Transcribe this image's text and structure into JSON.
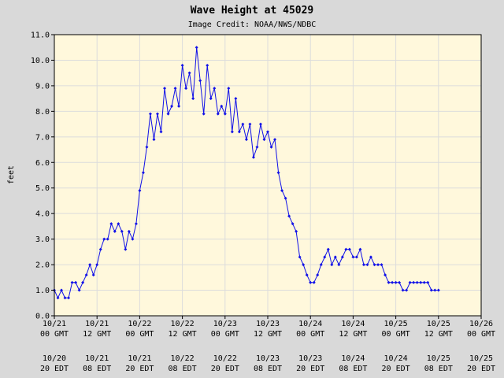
{
  "colors": {
    "page_background": "#d9d9d9",
    "plot_background": "#fff8dc",
    "grid": "#dcdcdc",
    "series": "#1010e8",
    "axis": "#000000"
  },
  "chart_data": {
    "type": "line",
    "title": "Wave Height at 45029",
    "subtitle": "Image Credit: NOAA/NWS/NDBC",
    "xlabel": "",
    "ylabel": "feet",
    "ylim": [
      0,
      11
    ],
    "yticks": [
      "0.0",
      "1.0",
      "2.0",
      "3.0",
      "4.0",
      "5.0",
      "6.0",
      "7.0",
      "8.0",
      "9.0",
      "10.0",
      "11.0"
    ],
    "x_range_hours": [
      0,
      120
    ],
    "grid": true,
    "legend": "none",
    "xticks_gmt": [
      {
        "line1": "10/21",
        "line2": "00 GMT"
      },
      {
        "line1": "10/21",
        "line2": "12 GMT"
      },
      {
        "line1": "10/22",
        "line2": "00 GMT"
      },
      {
        "line1": "10/22",
        "line2": "12 GMT"
      },
      {
        "line1": "10/23",
        "line2": "00 GMT"
      },
      {
        "line1": "10/23",
        "line2": "12 GMT"
      },
      {
        "line1": "10/24",
        "line2": "00 GMT"
      },
      {
        "line1": "10/24",
        "line2": "12 GMT"
      },
      {
        "line1": "10/25",
        "line2": "00 GMT"
      },
      {
        "line1": "10/25",
        "line2": "12 GMT"
      },
      {
        "line1": "10/26",
        "line2": "00 GMT"
      }
    ],
    "xticks_edt": [
      {
        "line1": "10/20",
        "line2": "20 EDT"
      },
      {
        "line1": "10/21",
        "line2": "08 EDT"
      },
      {
        "line1": "10/21",
        "line2": "20 EDT"
      },
      {
        "line1": "10/22",
        "line2": "08 EDT"
      },
      {
        "line1": "10/22",
        "line2": "20 EDT"
      },
      {
        "line1": "10/23",
        "line2": "08 EDT"
      },
      {
        "line1": "10/23",
        "line2": "20 EDT"
      },
      {
        "line1": "10/24",
        "line2": "08 EDT"
      },
      {
        "line1": "10/24",
        "line2": "20 EDT"
      },
      {
        "line1": "10/25",
        "line2": "08 EDT"
      },
      {
        "line1": "10/25",
        "line2": "20 EDT"
      }
    ],
    "series": [
      {
        "x_hours": [
          0,
          1,
          2,
          3,
          4,
          5,
          6,
          7,
          8,
          9,
          10,
          11,
          12,
          13,
          14,
          15,
          16,
          17,
          18,
          19,
          20,
          21,
          22,
          23,
          24,
          25,
          26,
          27,
          28,
          29,
          30,
          31,
          32,
          33,
          34,
          35,
          36,
          37,
          38,
          39,
          40,
          41,
          42,
          43,
          44,
          45,
          46,
          47,
          48,
          49,
          50,
          51,
          52,
          53,
          54,
          55,
          56,
          57,
          58,
          59,
          60,
          61,
          62,
          63,
          64,
          65,
          66,
          67,
          68,
          69,
          70,
          71,
          72,
          73,
          74,
          75,
          76,
          77,
          78,
          79,
          80,
          81,
          82,
          83,
          84,
          85,
          86,
          87,
          88,
          89,
          90,
          91,
          92,
          93,
          94,
          95,
          96,
          97,
          98,
          99,
          100,
          101,
          102,
          103,
          104,
          105,
          106,
          107,
          108
        ],
        "values": [
          1.0,
          0.7,
          1.0,
          0.7,
          0.7,
          1.3,
          1.3,
          1.0,
          1.3,
          1.6,
          2.0,
          1.6,
          2.0,
          2.6,
          3.0,
          3.0,
          3.6,
          3.3,
          3.6,
          3.3,
          2.6,
          3.3,
          3.0,
          3.6,
          4.9,
          5.6,
          6.6,
          7.9,
          6.9,
          7.9,
          7.2,
          8.9,
          7.9,
          8.2,
          8.9,
          8.2,
          9.8,
          8.9,
          9.5,
          8.5,
          10.5,
          9.2,
          7.9,
          9.8,
          8.5,
          8.9,
          7.9,
          8.2,
          7.9,
          8.9,
          7.2,
          8.5,
          7.2,
          7.5,
          6.9,
          7.5,
          6.2,
          6.6,
          7.5,
          6.9,
          7.2,
          6.6,
          6.9,
          5.6,
          4.9,
          4.6,
          3.9,
          3.6,
          3.3,
          2.3,
          2.0,
          1.6,
          1.3,
          1.3,
          1.6,
          2.0,
          2.3,
          2.6,
          2.0,
          2.3,
          2.0,
          2.3,
          2.6,
          2.6,
          2.3,
          2.3,
          2.6,
          2.0,
          2.0,
          2.3,
          2.0,
          2.0,
          2.0,
          1.6,
          1.3,
          1.3,
          1.3,
          1.3,
          1.0,
          1.0,
          1.3,
          1.3,
          1.3,
          1.3,
          1.3,
          1.3,
          1.0,
          1.0,
          1.0
        ],
        "markers": true
      }
    ]
  }
}
